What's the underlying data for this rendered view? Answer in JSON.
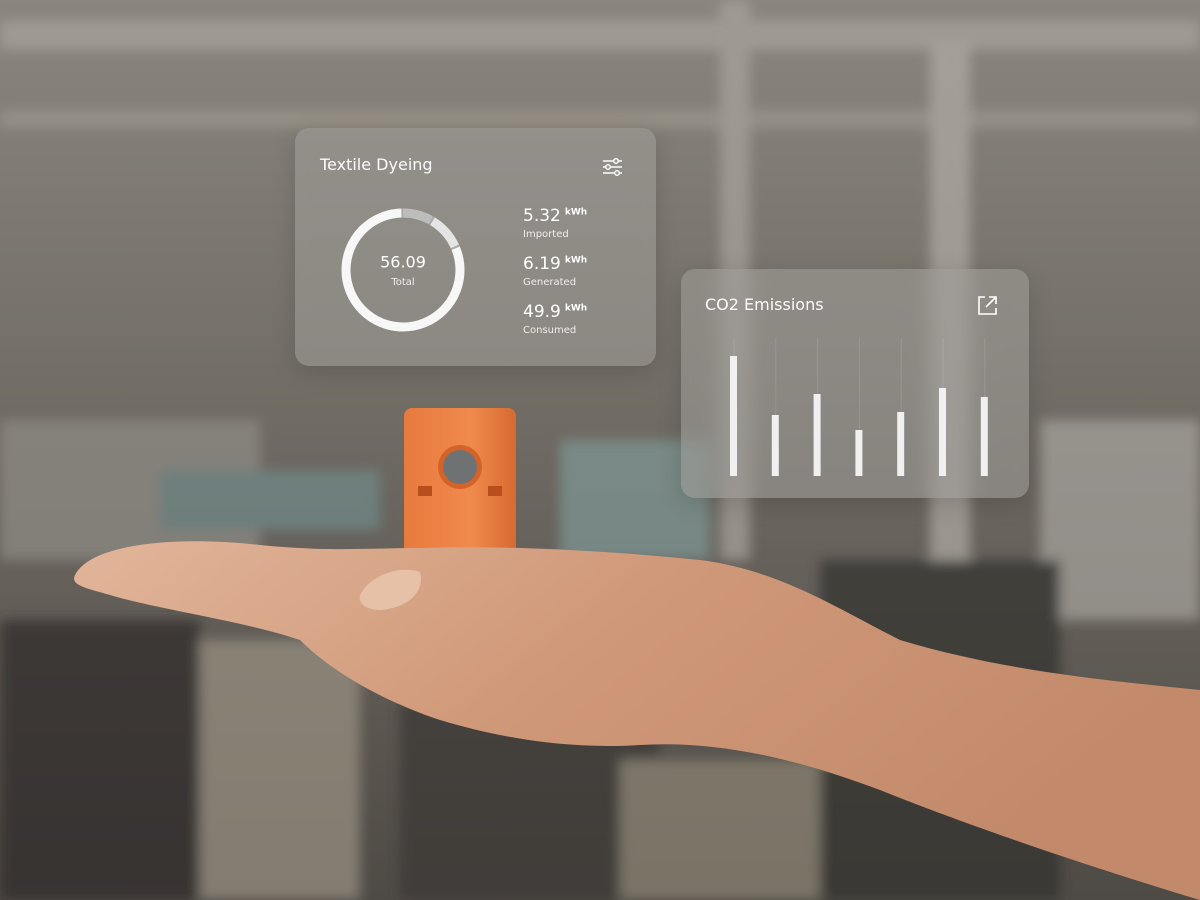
{
  "dashboard_card": {
    "title": "Textile Dyeing",
    "total": {
      "value": 56.09,
      "label": "Total"
    },
    "metrics": [
      {
        "value": 5.32,
        "unit": "kWh",
        "label": "Imported"
      },
      {
        "value": 6.19,
        "unit": "kWh",
        "label": "Generated"
      },
      {
        "value": 49.9,
        "unit": "kWh",
        "label": "Consumed"
      }
    ]
  },
  "chart_data": {
    "type": "bar",
    "title": "CO2 Emissions",
    "categories": [
      null,
      null,
      null,
      null,
      null,
      null,
      null
    ],
    "values": [
      120,
      61,
      82,
      46,
      64,
      88,
      79
    ],
    "color": "#f0f0f0",
    "ylim": [
      0,
      130
    ]
  }
}
